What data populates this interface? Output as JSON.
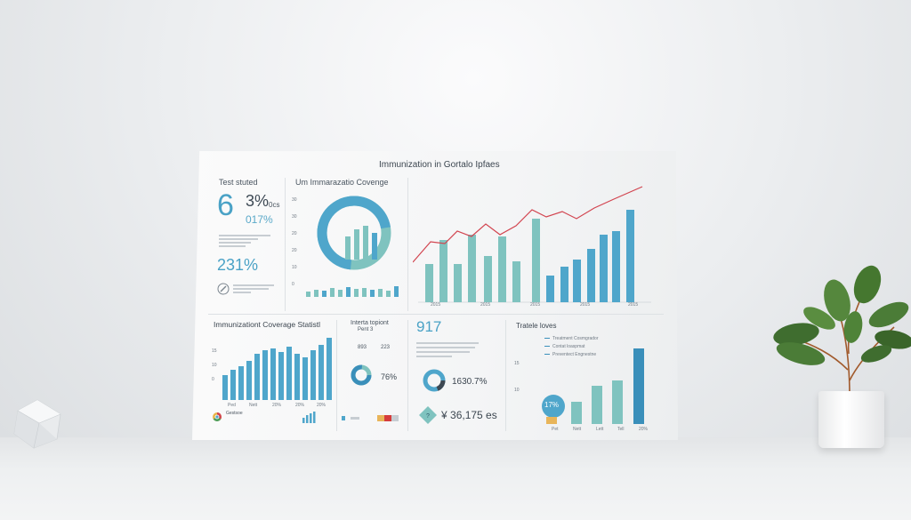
{
  "board": {
    "title": "Immunization in Gortalo Ipfaes",
    "left_panel": {
      "header": "Test stuted",
      "big_number": "6",
      "big_percent": "3%",
      "sub_a": "0cs",
      "sub_b": "017%",
      "stat_2": "231%"
    },
    "donut_panel": {
      "title": "Um Immarazatio Covenge",
      "y_ticks": [
        "30",
        "30",
        "20",
        "20",
        "10",
        "0"
      ]
    },
    "main_chart_ticks": [
      "2015",
      "2015",
      "2015",
      "2015",
      "2015"
    ],
    "bottom_left": {
      "title": "Immunizationt Coverage Statistl",
      "x_ticks": [
        "Ped",
        "Nett",
        "20%",
        "20%",
        "20%"
      ],
      "y_ticks": [
        "15",
        "10",
        "0"
      ],
      "footer": "Gestsoe"
    },
    "mid_card": {
      "title": "Interta topiont",
      "subtitle": "Pent 3",
      "values": [
        "893",
        "223"
      ],
      "donut_percent": "76%"
    },
    "kpi_card": {
      "big_number": "917",
      "donut_value": "1630.7%",
      "money_value": "36,175 es"
    },
    "bottom_right": {
      "title": "Tratele loves",
      "legend": [
        "Treatment Cosmgrador",
        "Contat loaspmat",
        "Preventect Engnestne"
      ],
      "badge": "17%",
      "x_ticks": [
        "Pet",
        "Nett",
        "Lett",
        "Tell",
        "20%"
      ],
      "y_ticks": [
        "15",
        "10"
      ]
    }
  },
  "colors": {
    "teal": "#7fc3bf",
    "blue": "#4fa6cb",
    "dark_blue": "#3a8fba",
    "red_line": "#d2444f",
    "gold": "#e8b55a",
    "accent_red": "#d53c3c"
  }
}
